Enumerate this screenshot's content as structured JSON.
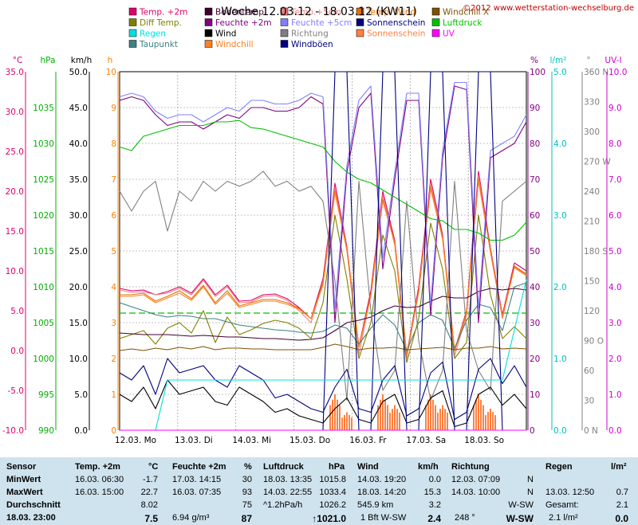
{
  "header": {
    "title": "Woche 12.03.12 - 18.03.12 (KW11)",
    "copyright": "©2012 www.wetterstation-wechselburg.de"
  },
  "legend": [
    {
      "label": "Temp. +2m",
      "color": "#e0006a"
    },
    {
      "label": "Bodentemp.",
      "color": "#400030"
    },
    {
      "label": "Temp.+5cm",
      "color": "#f08080"
    },
    {
      "label": "Temp. Wind",
      "color": "#e07000"
    },
    {
      "label": "Windchill X",
      "color": "#805000"
    },
    {
      "label": "Diff Temp.",
      "color": "#808000"
    },
    {
      "label": "Feuchte +2m",
      "color": "#800080"
    },
    {
      "label": "Feuchte +5cm",
      "color": "#8080ff"
    },
    {
      "label": "Sonnenschein",
      "color": "#000080"
    },
    {
      "label": "Luftdruck",
      "color": "#00c000"
    },
    {
      "label": "Regen",
      "color": "#00e0e0"
    },
    {
      "label": "Wind",
      "color": "#000000"
    },
    {
      "label": "Richtung",
      "color": "#808080"
    },
    {
      "label": "Sonnenschein",
      "color": "#ff8040"
    },
    {
      "label": "UV",
      "color": "#ff00ff"
    },
    {
      "label": "Taupunkt",
      "color": "#408080"
    },
    {
      "label": "Windchill",
      "color": "#ff8020"
    },
    {
      "label": "Windböen",
      "color": "#000080"
    }
  ],
  "chart_data": {
    "type": "line",
    "grid": true,
    "axes": [
      {
        "unit": "°C",
        "color": "#e0006a",
        "ticks": [
          "35.0",
          "30.0",
          "25.0",
          "20.0",
          "15.0",
          "10.0",
          "5.0",
          "0.0",
          "-5.0",
          "-10.0"
        ],
        "range": [
          -10,
          35
        ]
      },
      {
        "unit": "hPa",
        "color": "#00b000",
        "ticks": [
          "1035",
          "1030",
          "1025",
          "1020",
          "1015",
          "1010",
          "1005",
          "1000",
          "995",
          "990"
        ],
        "range": [
          990,
          1040
        ]
      },
      {
        "unit": "km/h",
        "color": "#000000",
        "ticks": [
          "50.0",
          "45.0",
          "40.0",
          "35.0",
          "30.0",
          "25.0",
          "20.0",
          "15.0",
          "10.0",
          "5.0",
          "0.0"
        ],
        "range": [
          0,
          50
        ]
      },
      {
        "unit": "h",
        "color": "#ff8000",
        "ticks": [
          "10",
          "9",
          "8",
          "7",
          "6",
          "5",
          "4",
          "3",
          "2",
          "1",
          "0"
        ],
        "range": [
          0,
          10
        ]
      },
      {
        "unit": "%",
        "color": "#800080",
        "ticks": [
          "100",
          "90",
          "80",
          "70",
          "60",
          "50",
          "40",
          "30",
          "20",
          "10",
          "0"
        ],
        "range": [
          0,
          100
        ]
      },
      {
        "unit": "l/m²",
        "color": "#00c0c0",
        "ticks": [
          "5.0",
          "4.0",
          "3.0",
          "2.0",
          "1.0",
          "0.0"
        ],
        "range": [
          0,
          5
        ]
      },
      {
        "unit": "°",
        "color": "#808080",
        "ticks": [
          "360 N",
          "330",
          "300",
          "270 W",
          "240",
          "210",
          "180 S",
          "150",
          "120",
          "90 O",
          "60",
          "30",
          "0 N"
        ],
        "range": [
          0,
          360
        ]
      },
      {
        "unit": "UV-I",
        "color": "#d000d0",
        "ticks": [
          "10.0",
          "9.0",
          "8.0",
          "7.0",
          "6.0",
          "5.0",
          "4.0",
          "3.0",
          "2.0",
          "1.0",
          "0.0"
        ],
        "range": [
          0,
          10
        ]
      }
    ],
    "x_ticks": [
      "12.03. Mo",
      "13.03. Di",
      "14.03. Mi",
      "15.03. Do",
      "16.03. Fr",
      "17.03. Sa",
      "18.03. So"
    ],
    "series": [
      {
        "name": "Temp. +2m",
        "axis": 0,
        "color": "#e0006a",
        "values": [
          7.8,
          7.5,
          7.6,
          7.0,
          7.4,
          8.0,
          7.2,
          9.0,
          7.0,
          8.2,
          6.2,
          6.3,
          7.0,
          7.1,
          6.5,
          5.4,
          4.0,
          9.0,
          21.0,
          13.0,
          0.5,
          7.5,
          20.0,
          13.8,
          -0.5,
          8.0,
          21.5,
          14.5,
          0.0,
          5.0,
          22.5,
          12.8,
          4.5,
          11.0,
          10.0
        ]
      },
      {
        "name": "Temp.+5cm",
        "axis": 0,
        "color": "#f08080",
        "values": [
          7.6,
          7.3,
          7.4,
          7.0,
          7.2,
          7.8,
          7.0,
          8.8,
          6.8,
          8.0,
          6.0,
          6.1,
          6.8,
          6.9,
          6.3,
          5.0,
          3.5,
          8.5,
          20.5,
          12.5,
          -0.5,
          7.0,
          19.5,
          13.2,
          -1.0,
          7.5,
          21.0,
          14.0,
          -0.7,
          4.5,
          22.0,
          12.3,
          4.0,
          10.5,
          9.5
        ]
      },
      {
        "name": "Temp. Wind",
        "axis": 0,
        "color": "#e07000",
        "values": [
          7.0,
          7.0,
          7.2,
          6.2,
          6.8,
          7.5,
          6.5,
          8.2,
          6.0,
          7.5,
          5.6,
          6.0,
          6.4,
          6.4,
          6.0,
          5.3,
          4.0,
          8.5,
          20.0,
          12.8,
          0.5,
          7.0,
          19.0,
          13.6,
          -0.5,
          7.5,
          20.5,
          14.2,
          0.0,
          4.8,
          21.5,
          12.6,
          4.3,
          10.6,
          9.6
        ]
      },
      {
        "name": "Windchill",
        "axis": 0,
        "color": "#ff8020",
        "values": [
          6.8,
          6.8,
          7.0,
          6.0,
          6.6,
          7.2,
          6.3,
          8.0,
          5.8,
          7.2,
          5.4,
          5.8,
          6.2,
          6.2,
          5.8,
          5.2,
          4.0,
          8.2,
          19.8,
          12.6,
          0.4,
          6.8,
          18.8,
          13.4,
          -0.6,
          7.3,
          20.3,
          14.0,
          -0.1,
          4.6,
          21.3,
          12.4,
          4.2,
          10.4,
          9.4
        ]
      },
      {
        "name": "Taupunkt",
        "axis": 0,
        "color": "#408080",
        "values": [
          6.0,
          5.5,
          5.0,
          4.5,
          4.2,
          4.4,
          4.3,
          4.0,
          4.0,
          3.6,
          3.2,
          3.0,
          2.8,
          2.6,
          2.5,
          2.3,
          2.2,
          2.4,
          3.2,
          2.8,
          0.8,
          2.8,
          4.5,
          3.2,
          0.0,
          3.5,
          4.5,
          3.8,
          0.3,
          3.8,
          5.8,
          5.4,
          2.5,
          8.0,
          8.5
        ]
      },
      {
        "name": "Diff Temp.",
        "axis": 0,
        "color": "#808000",
        "values": [
          1.5,
          2.0,
          2.5,
          0.8,
          2.8,
          3.5,
          2.2,
          5.0,
          1.0,
          4.2,
          2.0,
          2.6,
          3.4,
          3.8,
          3.5,
          2.8,
          1.5,
          6.0,
          17.0,
          9.0,
          -1.0,
          3.5,
          14.5,
          10.0,
          -1.5,
          4.0,
          16.0,
          10.2,
          -1.0,
          1.0,
          17.0,
          7.0,
          1.5,
          3.0,
          1.5
        ]
      },
      {
        "name": "Bodentemp.",
        "axis": 0,
        "color": "#400030",
        "values": [
          2.2,
          2.1,
          2.0,
          2.0,
          2.0,
          1.9,
          1.8,
          1.9,
          1.8,
          1.7,
          1.7,
          1.6,
          1.5,
          1.5,
          1.4,
          1.3,
          1.4,
          1.6,
          2.5,
          3.5,
          3.8,
          4.2,
          5.0,
          5.6,
          5.4,
          5.5,
          6.2,
          6.8,
          6.6,
          6.6,
          7.4,
          7.8,
          7.6,
          7.8,
          7.6
        ]
      },
      {
        "name": "Windchill X",
        "axis": 0,
        "color": "#805000",
        "values": [
          0,
          0.2,
          0,
          0.3,
          0.1,
          0.4,
          0.2,
          0.5,
          0.1,
          0.3,
          0.3,
          0.2,
          0.2,
          0.1,
          0.1,
          0.1,
          0.1,
          0.4,
          0.8,
          0.5,
          0.1,
          0.3,
          0.3,
          0.4,
          0.1,
          0.2,
          0.3,
          0.4,
          0.1,
          0.3,
          0.3,
          0.5,
          0.2,
          0.3,
          0.2
        ]
      },
      {
        "name": "Feuchte +2m",
        "axis": 4,
        "color": "#800080",
        "values": [
          92,
          93,
          92,
          88,
          85,
          86,
          86,
          84,
          86,
          88,
          87,
          90,
          90,
          89,
          89,
          90,
          93,
          91,
          30,
          72,
          90,
          94,
          45,
          70,
          92,
          92,
          32,
          76,
          96,
          95,
          30,
          76,
          78,
          80,
          86
        ]
      },
      {
        "name": "Feuchte +5cm",
        "axis": 4,
        "color": "#8080ff",
        "values": [
          93,
          94,
          93,
          89,
          87,
          88,
          88,
          86,
          88,
          90,
          89,
          92,
          92,
          91,
          91,
          92,
          94,
          93,
          34,
          74,
          92,
          96,
          48,
          72,
          94,
          94,
          35,
          78,
          97,
          97,
          34,
          78,
          80,
          82,
          88
        ]
      },
      {
        "name": "Luftdruck",
        "axis": 1,
        "color": "#00c000",
        "values": [
          1029.5,
          1029.0,
          1031.0,
          1031.5,
          1032.0,
          1032.5,
          1032.5,
          1032.5,
          1033.0,
          1033.0,
          1033.2,
          1032.2,
          1032.0,
          1031.5,
          1031.0,
          1030.5,
          1030.0,
          1029.5,
          1027.5,
          1026.0,
          1025.0,
          1024.5,
          1023.5,
          1022.5,
          1021.5,
          1020.5,
          1019.5,
          1019.2,
          1018.0,
          1018.0,
          1017.5,
          1016.5,
          1016.5,
          1017.2,
          1019.0
        ]
      },
      {
        "name": "Richtung",
        "axis": 6,
        "color": "#808080",
        "values": [
          240,
          220,
          240,
          250,
          200,
          240,
          230,
          250,
          240,
          250,
          245,
          250,
          260,
          245,
          250,
          240,
          245,
          230,
          150,
          30,
          250,
          120,
          40,
          60,
          230,
          90,
          30,
          60,
          250,
          100,
          60,
          40,
          230,
          240,
          250
        ]
      },
      {
        "name": "Wind",
        "axis": 2,
        "color": "#000000",
        "values": [
          5.0,
          4.0,
          6.0,
          3.0,
          7.0,
          5.0,
          5.5,
          6.0,
          4.0,
          3.5,
          6.0,
          5.0,
          4.0,
          2.5,
          3.0,
          2.0,
          1.5,
          1.0,
          3.0,
          4.5,
          1.5,
          1.0,
          4.0,
          5.0,
          1.0,
          1.5,
          4.5,
          5.5,
          0.5,
          1.0,
          5.0,
          6.0,
          3.5,
          5.0,
          3.0
        ]
      },
      {
        "name": "Windböen",
        "axis": 2,
        "color": "#000080",
        "values": [
          8.0,
          7.0,
          9.0,
          5.0,
          10.0,
          8.0,
          8.5,
          9.0,
          7.0,
          6.0,
          9.0,
          8.0,
          7.0,
          4.5,
          5.0,
          4.0,
          3.0,
          2.5,
          6.0,
          8.5,
          3.0,
          2.5,
          7.0,
          9.0,
          2.0,
          3.0,
          8.0,
          9.5,
          1.5,
          2.5,
          8.5,
          10.0,
          6.5,
          9.0,
          6.0
        ]
      },
      {
        "name": "Sonnenschein",
        "axis": 6,
        "color": "#000080",
        "values": [
          0,
          0,
          0,
          0,
          0,
          0,
          0,
          0,
          0,
          0,
          0,
          0,
          0,
          0,
          0,
          0,
          0,
          0,
          360,
          360,
          0,
          0,
          360,
          360,
          0,
          0,
          360,
          360,
          0,
          0,
          360,
          360,
          0,
          0,
          0
        ]
      },
      {
        "name": "Regen",
        "axis": 5,
        "color": "#00e0e0",
        "values": [
          0,
          0,
          0,
          0,
          0.7,
          0.7,
          0.7,
          0.7,
          0.7,
          0.7,
          0.7,
          0.7,
          0.7,
          0.7,
          0.7,
          0.7,
          0.7,
          0.7,
          0.7,
          0.7,
          0.7,
          0.7,
          0.7,
          0.7,
          0.7,
          0.7,
          0.7,
          0.7,
          0.7,
          0.7,
          0.7,
          0.7,
          0.7,
          1.4,
          2.1
        ]
      },
      {
        "name": "UV",
        "axis": 7,
        "color": "#ff00ff",
        "values": [
          0,
          0,
          0,
          0,
          0,
          0,
          0,
          0,
          0,
          0,
          0,
          0,
          0,
          0,
          0,
          0,
          0,
          0,
          0,
          0,
          0,
          0,
          0,
          0,
          0,
          0,
          0,
          0,
          0,
          0,
          0,
          0,
          0,
          0,
          0
        ]
      }
    ],
    "sunshine_bars": [
      0,
      0,
      0,
      0,
      0,
      0,
      0,
      0,
      0,
      0,
      0,
      0,
      0,
      0,
      0,
      0,
      0,
      0,
      1,
      0.5,
      0,
      0,
      1,
      0.7,
      0,
      0,
      1,
      0.7,
      0,
      0,
      1,
      0.6,
      0,
      0,
      0
    ],
    "reference_line": {
      "axis": 0,
      "value": 4.7,
      "color": "#00c000"
    }
  },
  "stats": {
    "sensor": {
      "header": "Sensor",
      "rows": [
        "MinWert",
        "MaxWert",
        "Durchschnitt",
        "18.03. 23:00"
      ]
    },
    "temp": {
      "header": "Temp. +2m",
      "unit": "°C",
      "min_date": "16.03. 06:30",
      "min_val": "-1.7",
      "max_date": "16.03. 15:00",
      "max_val": "22.7",
      "avg_val": "8.02",
      "cur_val": "7.5"
    },
    "feuchte": {
      "header": "Feuchte +2m",
      "unit": "%",
      "min_date": "17.03. 14:15",
      "min_val": "30",
      "max_date": "16.03. 07:35",
      "max_val": "93",
      "avg_val": "75",
      "extra": "6.94 g/m³",
      "cur_val": "87"
    },
    "luftdruck": {
      "header": "Luftdruck",
      "unit": "hPa",
      "min_date": "18.03. 13:35",
      "min_val": "1015.8",
      "max_date": "14.03. 22:55",
      "max_val": "1033.4",
      "trend": "^1.2hPa/h",
      "avg_val": "1026.2",
      "cur_val": "↑1021.0"
    },
    "wind": {
      "header": "Wind",
      "unit": "km/h",
      "min_date": "14.03. 19:20",
      "min_val": "0.0",
      "max_date": "18.03. 14:20",
      "max_val": "15.3",
      "dist": "545.9 km",
      "avg_val": "3.2",
      "bft": "1 Bft W-SW",
      "cur_val": "2.4"
    },
    "richtung": {
      "header": "Richtung",
      "min_date": "12.03. 07:09",
      "min_val": "N",
      "max_date": "14.03. 10:00",
      "max_val": "N",
      "avg_val": "W-SW",
      "cur_deg": "248 °",
      "cur_val": "W-SW"
    },
    "regen": {
      "header": "Regen",
      "unit": "l/m²",
      "max_date": "13.03. 12:50",
      "max_val": "0.7",
      "total_label": "Gesamt:",
      "total_val": "2.1",
      "cur_extra": "2.1 l/m²",
      "cur_val": "0.0"
    }
  }
}
